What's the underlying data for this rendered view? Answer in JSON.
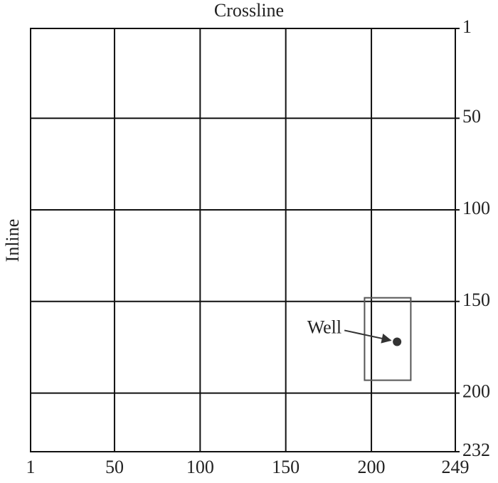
{
  "chart_data": {
    "type": "scatter",
    "x_label": "Crossline",
    "y_label": "Inline",
    "xlim": [
      1,
      249
    ],
    "xticks": [
      1,
      50,
      100,
      150,
      200,
      249
    ],
    "ylim": [
      232,
      1
    ],
    "yticks": [
      1,
      50,
      100,
      150,
      200,
      232
    ],
    "y_axis_side": "right",
    "grid": true,
    "series": [
      {
        "name": "Well",
        "color": "#333333",
        "x": [
          215
        ],
        "values": [
          172
        ]
      }
    ],
    "highlight_box": {
      "xlim": [
        196,
        223
      ],
      "ylim": [
        193,
        148
      ],
      "color": "#555555"
    }
  }
}
